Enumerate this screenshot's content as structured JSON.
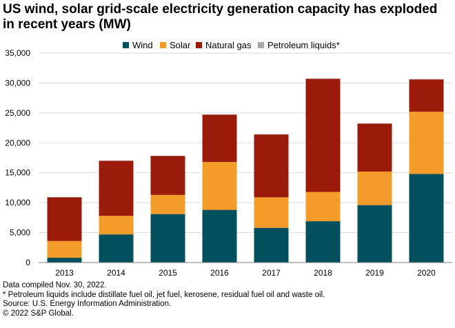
{
  "title": "US wind, solar grid-scale electricity generation capacity has exploded in recent years (MW)",
  "legend": [
    {
      "name": "Wind",
      "color": "#024f5e"
    },
    {
      "name": "Solar",
      "color": "#f39c2a"
    },
    {
      "name": "Natural gas",
      "color": "#9b1b0a"
    },
    {
      "name": "Petroleum liquids*",
      "color": "#a6a6a6"
    }
  ],
  "chart_data": {
    "type": "bar",
    "stacked": true,
    "title": "US wind, solar grid-scale electricity generation capacity has exploded in recent years (MW)",
    "categories": [
      "2013",
      "2014",
      "2015",
      "2016",
      "2017",
      "2018",
      "2019",
      "2020"
    ],
    "series": [
      {
        "name": "Wind",
        "color": "#024f5e",
        "values": [
          800,
          4700,
          8100,
          8800,
          5800,
          6900,
          9600,
          14800
        ]
      },
      {
        "name": "Solar",
        "color": "#f39c2a",
        "values": [
          2800,
          3100,
          3200,
          8000,
          5100,
          4900,
          5600,
          10400
        ]
      },
      {
        "name": "Natural gas",
        "color": "#9b1b0a",
        "values": [
          7300,
          9200,
          6500,
          7900,
          10500,
          18900,
          8000,
          5400
        ]
      },
      {
        "name": "Petroleum liquids*",
        "color": "#a6a6a6",
        "values": [
          50,
          50,
          50,
          50,
          50,
          50,
          50,
          50
        ]
      }
    ],
    "yticks": [
      "0",
      "5,000",
      "10,000",
      "15,000",
      "20,000",
      "25,000",
      "30,000",
      "35,000"
    ],
    "ylim": [
      0,
      35000
    ],
    "ystep": 5000,
    "xlabel": "",
    "ylabel": "",
    "grid": true,
    "legend_position": "top"
  },
  "footer": {
    "line1": "Data compiled Nov. 30, 2022.",
    "line2": "* Petroleum liquids include distillate fuel oil, jet fuel, kerosene, residual fuel oil and waste oil.",
    "line3": "Source: U.S. Energy Information Administration.",
    "line4": "© 2022 S&P Global."
  }
}
